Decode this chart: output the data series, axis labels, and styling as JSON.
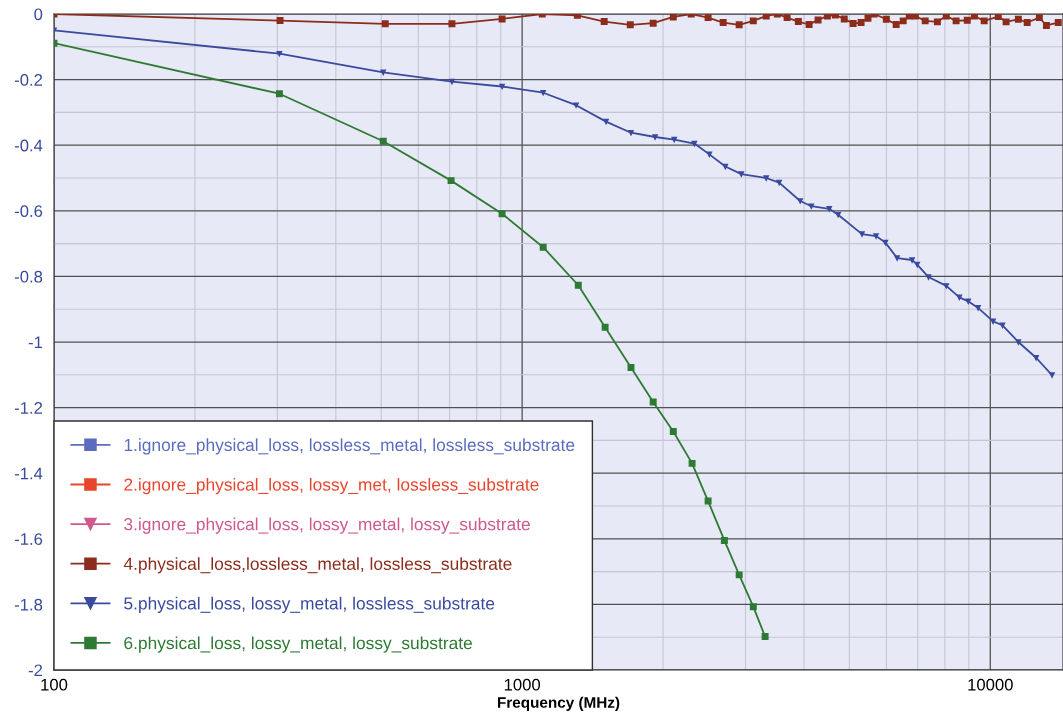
{
  "chart_data": {
    "type": "line",
    "xlabel": "Frequency (MHz)",
    "log": "x",
    "grid": true,
    "legend": "bottom left",
    "xlim": [
      100,
      14300
    ],
    "xticks": [
      100,
      {
        "value": 200,
        "label": null
      },
      {
        "value": 300,
        "label": null
      },
      {
        "value": 400,
        "label": null
      },
      {
        "value": 500,
        "label": null
      },
      {
        "value": 600,
        "label": null
      },
      {
        "value": 700,
        "label": null
      },
      {
        "value": 800,
        "label": null
      },
      {
        "value": 900,
        "label": null
      },
      1000,
      {
        "value": 2000,
        "label": null
      },
      {
        "value": 3000,
        "label": null
      },
      {
        "value": 4000,
        "label": null
      },
      {
        "value": 5000,
        "label": null
      },
      {
        "value": 6000,
        "label": null
      },
      {
        "value": 7000,
        "label": null
      },
      {
        "value": 8000,
        "label": null
      },
      {
        "value": 9000,
        "label": null
      },
      10000
    ],
    "ylim": [
      -2,
      0
    ],
    "yticks": [
      0,
      {
        "value": -0.1,
        "label": null
      },
      -0.2,
      {
        "value": -0.3,
        "label": null
      },
      -0.4,
      {
        "value": -0.5,
        "label": null
      },
      -0.6,
      {
        "value": -0.7,
        "label": null
      },
      -0.8,
      {
        "value": -0.9,
        "label": null
      },
      -1,
      {
        "value": -1.1,
        "label": null
      },
      -1.2,
      {
        "value": -1.3,
        "label": null
      },
      -1.4,
      {
        "value": -1.5,
        "label": null
      },
      -1.6,
      {
        "value": -1.7,
        "label": null
      },
      -1.8,
      {
        "value": -1.9,
        "label": null
      },
      -2
    ],
    "series": [
      {
        "name": "1.ignore_physical_loss, lossless_metal, lossless_substrate",
        "color": "#5b6cc0",
        "marker": "square"
      },
      {
        "name": "2.ignore_physical_loss, lossy_met, lossless_substrate",
        "color": "#e8452e",
        "marker": "square"
      },
      {
        "name": "3.ignore_physical_loss, lossy_metal, lossy_substrate",
        "color": "#d0588a",
        "marker": "triangle"
      },
      {
        "name": "4.physical_loss,lossless_metal, lossless_substrate",
        "color": "#8b2c1c",
        "marker": "square",
        "x": [
          100,
          304,
          510,
          708,
          906,
          1104,
          1312,
          1497,
          1702,
          1905,
          2103,
          2297,
          2496,
          2688,
          2908,
          3117,
          3322,
          3508,
          3681,
          3890,
          4102,
          4287,
          4487,
          4667,
          4876,
          5093,
          5297,
          5480,
          5649,
          5998,
          6295,
          6516,
          6714,
          6918,
          7261,
          7709,
          8054,
          8453,
          8930,
          9247,
          9705,
          10400,
          10810,
          11480,
          11990,
          12730,
          13180,
          13970
        ],
        "values": [
          0,
          -0.02,
          -0.03,
          -0.03,
          -0.015,
          0,
          -0.004,
          -0.023,
          -0.033,
          -0.028,
          -0.009,
          0,
          -0.011,
          -0.026,
          -0.033,
          -0.021,
          -0.006,
          0,
          -0.011,
          -0.023,
          -0.032,
          -0.018,
          -0.006,
          -0.003,
          -0.015,
          -0.029,
          -0.026,
          -0.013,
          0,
          -0.016,
          -0.032,
          -0.021,
          -0.006,
          -0.006,
          -0.021,
          -0.024,
          -0.006,
          -0.021,
          -0.019,
          -0.006,
          -0.021,
          -0.008,
          -0.024,
          -0.016,
          -0.026,
          -0.011,
          -0.035,
          -0.026
        ]
      },
      {
        "name": "5.physical_loss, lossy_metal, lossless_substrate",
        "color": "#3a4a9e",
        "marker": "triangle",
        "x": [
          100,
          303,
          505,
          708,
          906,
          1109,
          1304,
          1511,
          1708,
          1923,
          2113,
          2333,
          2512,
          2717,
          2939,
          3322,
          3540,
          3926,
          4146,
          4529,
          4732,
          5321,
          5702,
          5970,
          6324,
          6808,
          6982,
          7379,
          8054,
          8590,
          8974,
          9419,
          10140,
          10620,
          11480,
          12530,
          13550
        ],
        "values": [
          -0.05,
          -0.121,
          -0.178,
          -0.206,
          -0.221,
          -0.24,
          -0.278,
          -0.328,
          -0.362,
          -0.375,
          -0.383,
          -0.395,
          -0.428,
          -0.465,
          -0.488,
          -0.5,
          -0.514,
          -0.57,
          -0.586,
          -0.594,
          -0.612,
          -0.671,
          -0.677,
          -0.697,
          -0.744,
          -0.75,
          -0.764,
          -0.802,
          -0.829,
          -0.864,
          -0.876,
          -0.896,
          -0.937,
          -0.949,
          -1.0,
          -1.048,
          -1.101
        ]
      },
      {
        "name": "6.physical_loss, lossy_metal, lossy_substrate",
        "color": "#2e7a34",
        "marker": "square",
        "x": [
          100,
          303,
          505,
          705,
          906,
          1109,
          1318,
          1504,
          1708,
          1905,
          2103,
          2307,
          2496,
          2704,
          2908,
          3117,
          3304
        ],
        "values": [
          -0.089,
          -0.243,
          -0.388,
          -0.508,
          -0.609,
          -0.711,
          -0.827,
          -0.955,
          -1.078,
          -1.183,
          -1.273,
          -1.37,
          -1.485,
          -1.605,
          -1.71,
          -1.807,
          -1.898
        ]
      }
    ]
  }
}
